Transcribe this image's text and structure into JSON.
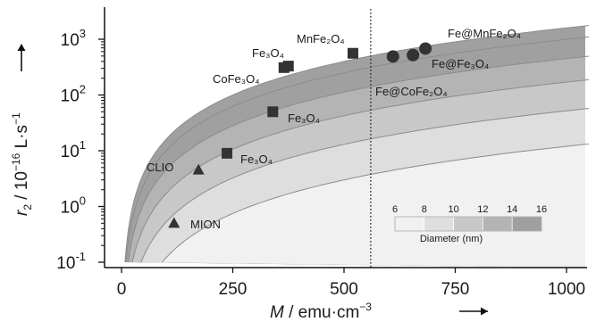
{
  "chart_data": {
    "type": "scatter",
    "x_axis": {
      "label_main": "M",
      "label_unit": " / emu·cm",
      "label_sup": "−3",
      "range": [
        0,
        1050
      ],
      "ticks": [
        0,
        250,
        500,
        750,
        1000
      ],
      "tick_labels": [
        "0",
        "250",
        "500",
        "750",
        "1000"
      ]
    },
    "y_axis": {
      "label_main": "r",
      "label_sub": "2",
      "label_unit": " / 10",
      "label_exp": "−16",
      "label_unit2": " L·s",
      "label_exp2": "−1",
      "scale": "log",
      "range": [
        0.1,
        2000
      ],
      "ticks": [
        0.1,
        1,
        10,
        100,
        1000
      ],
      "tick_labels": [
        {
          "base": "10",
          "exp": "-1"
        },
        {
          "base": "10",
          "exp": "0"
        },
        {
          "base": "10",
          "exp": "1"
        },
        {
          "base": "10",
          "exp": "2"
        },
        {
          "base": "10",
          "exp": "3"
        }
      ]
    },
    "curves": [
      {
        "diameter": 6,
        "fill": "#f1f1f1"
      },
      {
        "diameter": 8,
        "fill": "#dedede"
      },
      {
        "diameter": 10,
        "fill": "#c8c8c8"
      },
      {
        "diameter": 12,
        "fill": "#b4b4b4"
      },
      {
        "diameter": 14,
        "fill": "#a0a0a0"
      },
      {
        "diameter": 16,
        "fill": "#a0a0a0"
      }
    ],
    "curve_values_at_M1000": [
      12,
      52,
      170,
      450,
      1000,
      1600
    ],
    "vertical_line_x": 560,
    "series": [
      {
        "marker": "square",
        "points": [
          {
            "x": 237,
            "y": 9,
            "label": "Fe₃O₄"
          },
          {
            "x": 340,
            "y": 50,
            "label": "Fe₃O₄"
          },
          {
            "x": 365,
            "y": 310,
            "label": "CoFe₃O₄"
          },
          {
            "x": 375,
            "y": 330,
            "label": "Fe₃O₄"
          },
          {
            "x": 520,
            "y": 560,
            "label": "MnFe₂O₄"
          }
        ]
      },
      {
        "marker": "triangle",
        "points": [
          {
            "x": 173,
            "y": 4.5,
            "label": "CLIO"
          },
          {
            "x": 118,
            "y": 0.5,
            "label": "MION"
          }
        ]
      },
      {
        "marker": "circle",
        "points": [
          {
            "x": 610,
            "y": 490,
            "label": ""
          },
          {
            "x": 655,
            "y": 520,
            "label": "Fe@Fe₃O₄"
          },
          {
            "x": 683,
            "y": 680,
            "label": "Fe@MnFe₂O₄"
          }
        ]
      }
    ],
    "extra_labels": [
      "Fe@CoFe₂O₄"
    ],
    "legend": {
      "title": "Diameter (nm)",
      "values": [
        "6",
        "8",
        "10",
        "12",
        "14",
        "16"
      ],
      "fills": [
        "#f1f1f1",
        "#dedede",
        "#c8c8c8",
        "#b4b4b4",
        "#a0a0a0"
      ]
    },
    "colors": {
      "marker": "#333333",
      "curve_line": "#8c8c8c",
      "axis": "#111111"
    }
  }
}
